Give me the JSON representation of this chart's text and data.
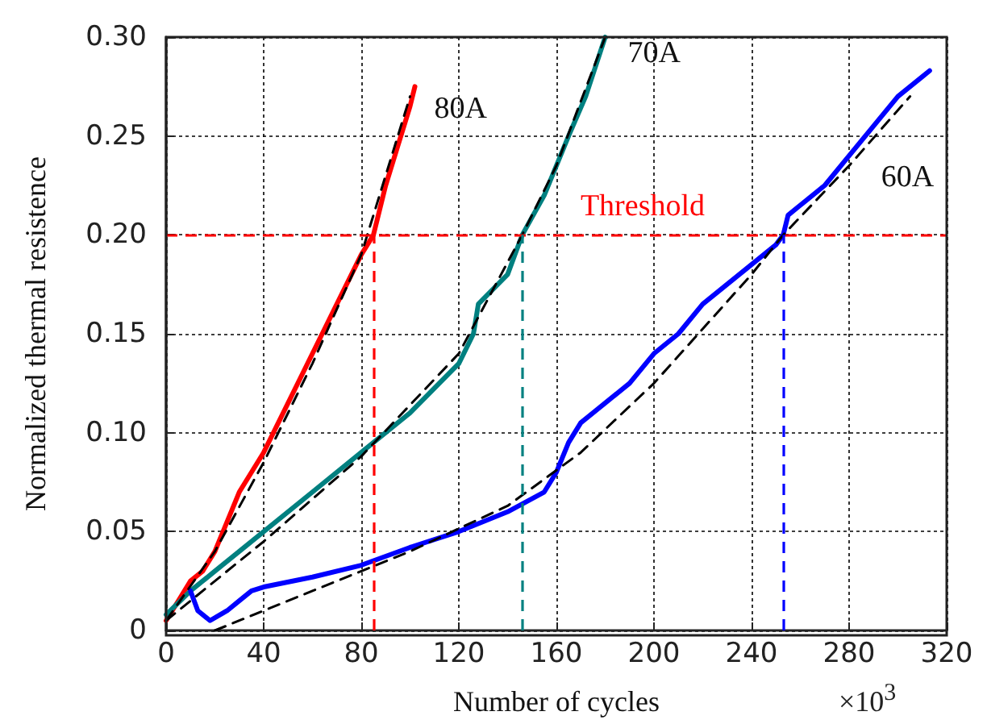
{
  "chart_data": {
    "type": "line",
    "xlabel": "Number of cycles",
    "ylabel": "Normalized thermal resistence",
    "annotations": [
      "×10$^{3}$"
    ],
    "xlim": [
      0,
      320
    ],
    "xticks": [
      0,
      40,
      80,
      120,
      160,
      200,
      240,
      280,
      320
    ],
    "ylim": [
      0,
      0.3
    ],
    "yticks": [
      0,
      0.05,
      {
        "value": 0.1,
        "label": "0.10"
      },
      0.15,
      {
        "value": 0.2,
        "label": "0.20"
      },
      0.25,
      {
        "value": 0.3,
        "label": "0.30"
      }
    ],
    "grid": true,
    "legend": false,
    "marker": "none",
    "series": [
      {
        "name": "80A",
        "color": "#ff0000",
        "line_style": "solid",
        "x": [
          0,
          5,
          10,
          15,
          20,
          25,
          30,
          40,
          50,
          60,
          70,
          80,
          85,
          90,
          95,
          100,
          102
        ],
        "values": [
          0.005,
          0.015,
          0.025,
          0.03,
          0.04,
          0.055,
          0.07,
          0.09,
          0.115,
          0.14,
          0.165,
          0.19,
          0.2,
          0.225,
          0.245,
          0.265,
          0.275
        ]
      },
      {
        "name": "70A",
        "color": "#008080",
        "line_style": "solid",
        "x": [
          0,
          10,
          20,
          30,
          40,
          60,
          80,
          100,
          120,
          126,
          128,
          140,
          146,
          155,
          165,
          172,
          180
        ],
        "values": [
          0.008,
          0.02,
          0.03,
          0.04,
          0.05,
          0.07,
          0.09,
          0.11,
          0.135,
          0.15,
          0.165,
          0.18,
          0.2,
          0.22,
          0.25,
          0.27,
          0.3
        ]
      },
      {
        "name": "60A",
        "color": "#0000ff",
        "line_style": "solid",
        "x": [
          10,
          13,
          18,
          25,
          30,
          35,
          40,
          60,
          80,
          100,
          120,
          140,
          155,
          160,
          165,
          170,
          180,
          190,
          200,
          210,
          220,
          230,
          240,
          250,
          253,
          255,
          260,
          270,
          280,
          290,
          300,
          310,
          313
        ],
        "values": [
          0.02,
          0.01,
          0.005,
          0.01,
          0.015,
          0.02,
          0.022,
          0.027,
          0.033,
          0.042,
          0.05,
          0.06,
          0.07,
          0.08,
          0.095,
          0.105,
          0.115,
          0.125,
          0.14,
          0.15,
          0.165,
          0.175,
          0.185,
          0.195,
          0.2,
          0.21,
          0.215,
          0.225,
          0.24,
          0.255,
          0.27,
          0.28,
          0.283
        ]
      },
      {
        "color": "#000000",
        "line_style": "dashed",
        "x": [
          0,
          20,
          40,
          60,
          80,
          100
        ],
        "values": [
          0.005,
          0.04,
          0.085,
          0.135,
          0.19,
          0.27
        ]
      },
      {
        "color": "#000000",
        "line_style": "dashed",
        "x": [
          0,
          40,
          80,
          120,
          146,
          160,
          180
        ],
        "values": [
          0.005,
          0.045,
          0.088,
          0.14,
          0.2,
          0.235,
          0.3
        ]
      },
      {
        "color": "#000000",
        "line_style": "dashed",
        "x": [
          20,
          60,
          100,
          140,
          170,
          200,
          240,
          253,
          280,
          305
        ],
        "values": [
          0.0,
          0.02,
          0.04,
          0.063,
          0.09,
          0.125,
          0.18,
          0.2,
          0.235,
          0.27
        ]
      }
    ],
    "ref_lines": [
      {
        "axis": "y",
        "value": 0.2,
        "label": "Threshold",
        "color": "#ff0000",
        "line_style": "dashed"
      },
      {
        "axis": "x",
        "value": 85,
        "label": null,
        "color": "#ff0000",
        "line_style": "dashed"
      },
      {
        "axis": "x",
        "value": 146,
        "label": null,
        "color": "#008080",
        "line_style": "dashed"
      },
      {
        "axis": "x",
        "value": 253,
        "label": null,
        "color": "#0000ff",
        "line_style": "dashed"
      }
    ]
  }
}
